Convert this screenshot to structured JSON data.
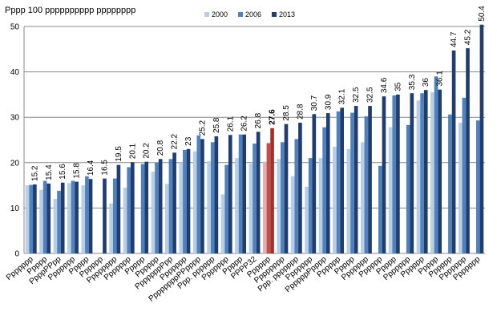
{
  "chart_data": {
    "type": "bar",
    "title": "Pppp 100 pppppppppp pppppppp",
    "categories": [
      "Ppppppp",
      "Ppppp",
      "PpppPPpp",
      "Ppppppp",
      "Ppppp",
      "Pppppp",
      "Pppppppp",
      "Ppppppp",
      "Ppppp",
      "Pppppp",
      "PppppppPpp",
      "Ppppppp",
      "PpppppppPPpppp",
      "Ppp. pppppp",
      "Ppppppp",
      "Ppppp",
      "PPPP32",
      "Pppppp",
      "Pppppppp",
      "Ppp. ppppppp",
      "Ppppppp",
      "PpppppPpppp",
      "Pppppp",
      "Ppppp",
      "Ppppppp",
      "Pppppp",
      "Ppppp",
      "Ppppppp",
      "Pppppp",
      "Ppppp",
      "Pppppp",
      "Ppppppp",
      "Ppppppp"
    ],
    "series": [
      {
        "name": "2000",
        "color": "#b9cde5",
        "values": [
          15.0,
          14.0,
          12.0,
          15.5,
          15.0,
          null,
          11.0,
          14.5,
          null,
          18.0,
          15.3,
          20.0,
          22.5,
          20.3,
          13.0,
          21.0,
          19.8,
          20.2,
          20.8,
          17.0,
          14.7,
          21.0,
          23.5,
          23.0,
          24.5,
          null,
          27.8,
          null,
          33.7,
          35.5,
          null,
          28.8,
          null
        ]
      },
      {
        "name": "2006",
        "color": "#4f81bd",
        "values": [
          15.1,
          16.0,
          13.8,
          16.0,
          17.0,
          null,
          16.5,
          19.0,
          19.7,
          20.0,
          20.8,
          22.8,
          26.0,
          24.5,
          19.5,
          26.2,
          24.2,
          24.3,
          24.5,
          25.2,
          21.0,
          27.8,
          31.3,
          31.0,
          30.2,
          19.3,
          34.8,
          28.3,
          35.3,
          39.0,
          30.6,
          34.3,
          29.3
        ]
      },
      {
        "name": "2013",
        "color": "#1f3d6e",
        "values": [
          15.2,
          15.4,
          15.6,
          15.8,
          16.4,
          16.5,
          19.5,
          20.1,
          20.2,
          20.8,
          22.2,
          23.0,
          25.2,
          25.8,
          26.1,
          26.2,
          26.8,
          27.6,
          28.5,
          28.8,
          30.7,
          30.9,
          32.1,
          32.5,
          32.5,
          34.6,
          35.0,
          35.3,
          36.0,
          36.1,
          44.7,
          45.2,
          50.4
        ]
      }
    ],
    "highlight": {
      "category": 17,
      "colors": [
        "#e6b0ae",
        "#c0504d",
        "#a4302b"
      ]
    },
    "ylim": [
      0,
      50
    ],
    "yticks": [
      0,
      10,
      20,
      30,
      40,
      50
    ],
    "grid": true,
    "legend": "top"
  }
}
